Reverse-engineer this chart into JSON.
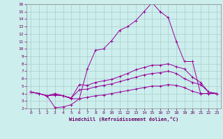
{
  "xlabel": "Windchill (Refroidissement éolien,°C)",
  "background_color": "#cceeed",
  "grid_color": "#aacccc",
  "line_color": "#990099",
  "xlim": [
    -0.5,
    23.5
  ],
  "ylim": [
    2,
    16
  ],
  "yticks": [
    2,
    3,
    4,
    5,
    6,
    7,
    8,
    9,
    10,
    11,
    12,
    13,
    14,
    15,
    16
  ],
  "xticks": [
    0,
    1,
    2,
    3,
    4,
    5,
    6,
    7,
    8,
    9,
    10,
    11,
    12,
    13,
    14,
    15,
    16,
    17,
    18,
    19,
    20,
    21,
    22,
    23
  ],
  "series": [
    [
      4.2,
      4.0,
      3.7,
      4.0,
      3.7,
      3.3,
      3.3,
      7.3,
      9.8,
      10.0,
      11.1,
      12.5,
      13.0,
      13.8,
      15.0,
      16.2,
      15.0,
      14.2,
      11.0,
      8.3,
      8.3,
      4.0,
      4.0,
      4.0
    ],
    [
      4.2,
      4.0,
      3.7,
      3.8,
      3.7,
      3.4,
      5.2,
      5.1,
      5.5,
      5.7,
      5.9,
      6.3,
      6.7,
      7.2,
      7.5,
      7.8,
      7.8,
      8.0,
      7.6,
      7.3,
      6.2,
      5.5,
      4.2,
      4.0
    ],
    [
      4.2,
      4.0,
      3.7,
      3.8,
      3.7,
      3.4,
      4.5,
      4.6,
      4.9,
      5.1,
      5.3,
      5.6,
      5.9,
      6.2,
      6.5,
      6.7,
      6.8,
      7.0,
      6.7,
      6.0,
      5.5,
      5.2,
      4.2,
      4.0
    ],
    [
      4.2,
      4.0,
      3.7,
      2.1,
      2.2,
      2.5,
      3.3,
      3.5,
      3.7,
      3.8,
      4.0,
      4.2,
      4.4,
      4.6,
      4.8,
      5.0,
      5.0,
      5.2,
      5.1,
      4.8,
      4.3,
      4.0,
      4.0,
      4.0
    ]
  ]
}
